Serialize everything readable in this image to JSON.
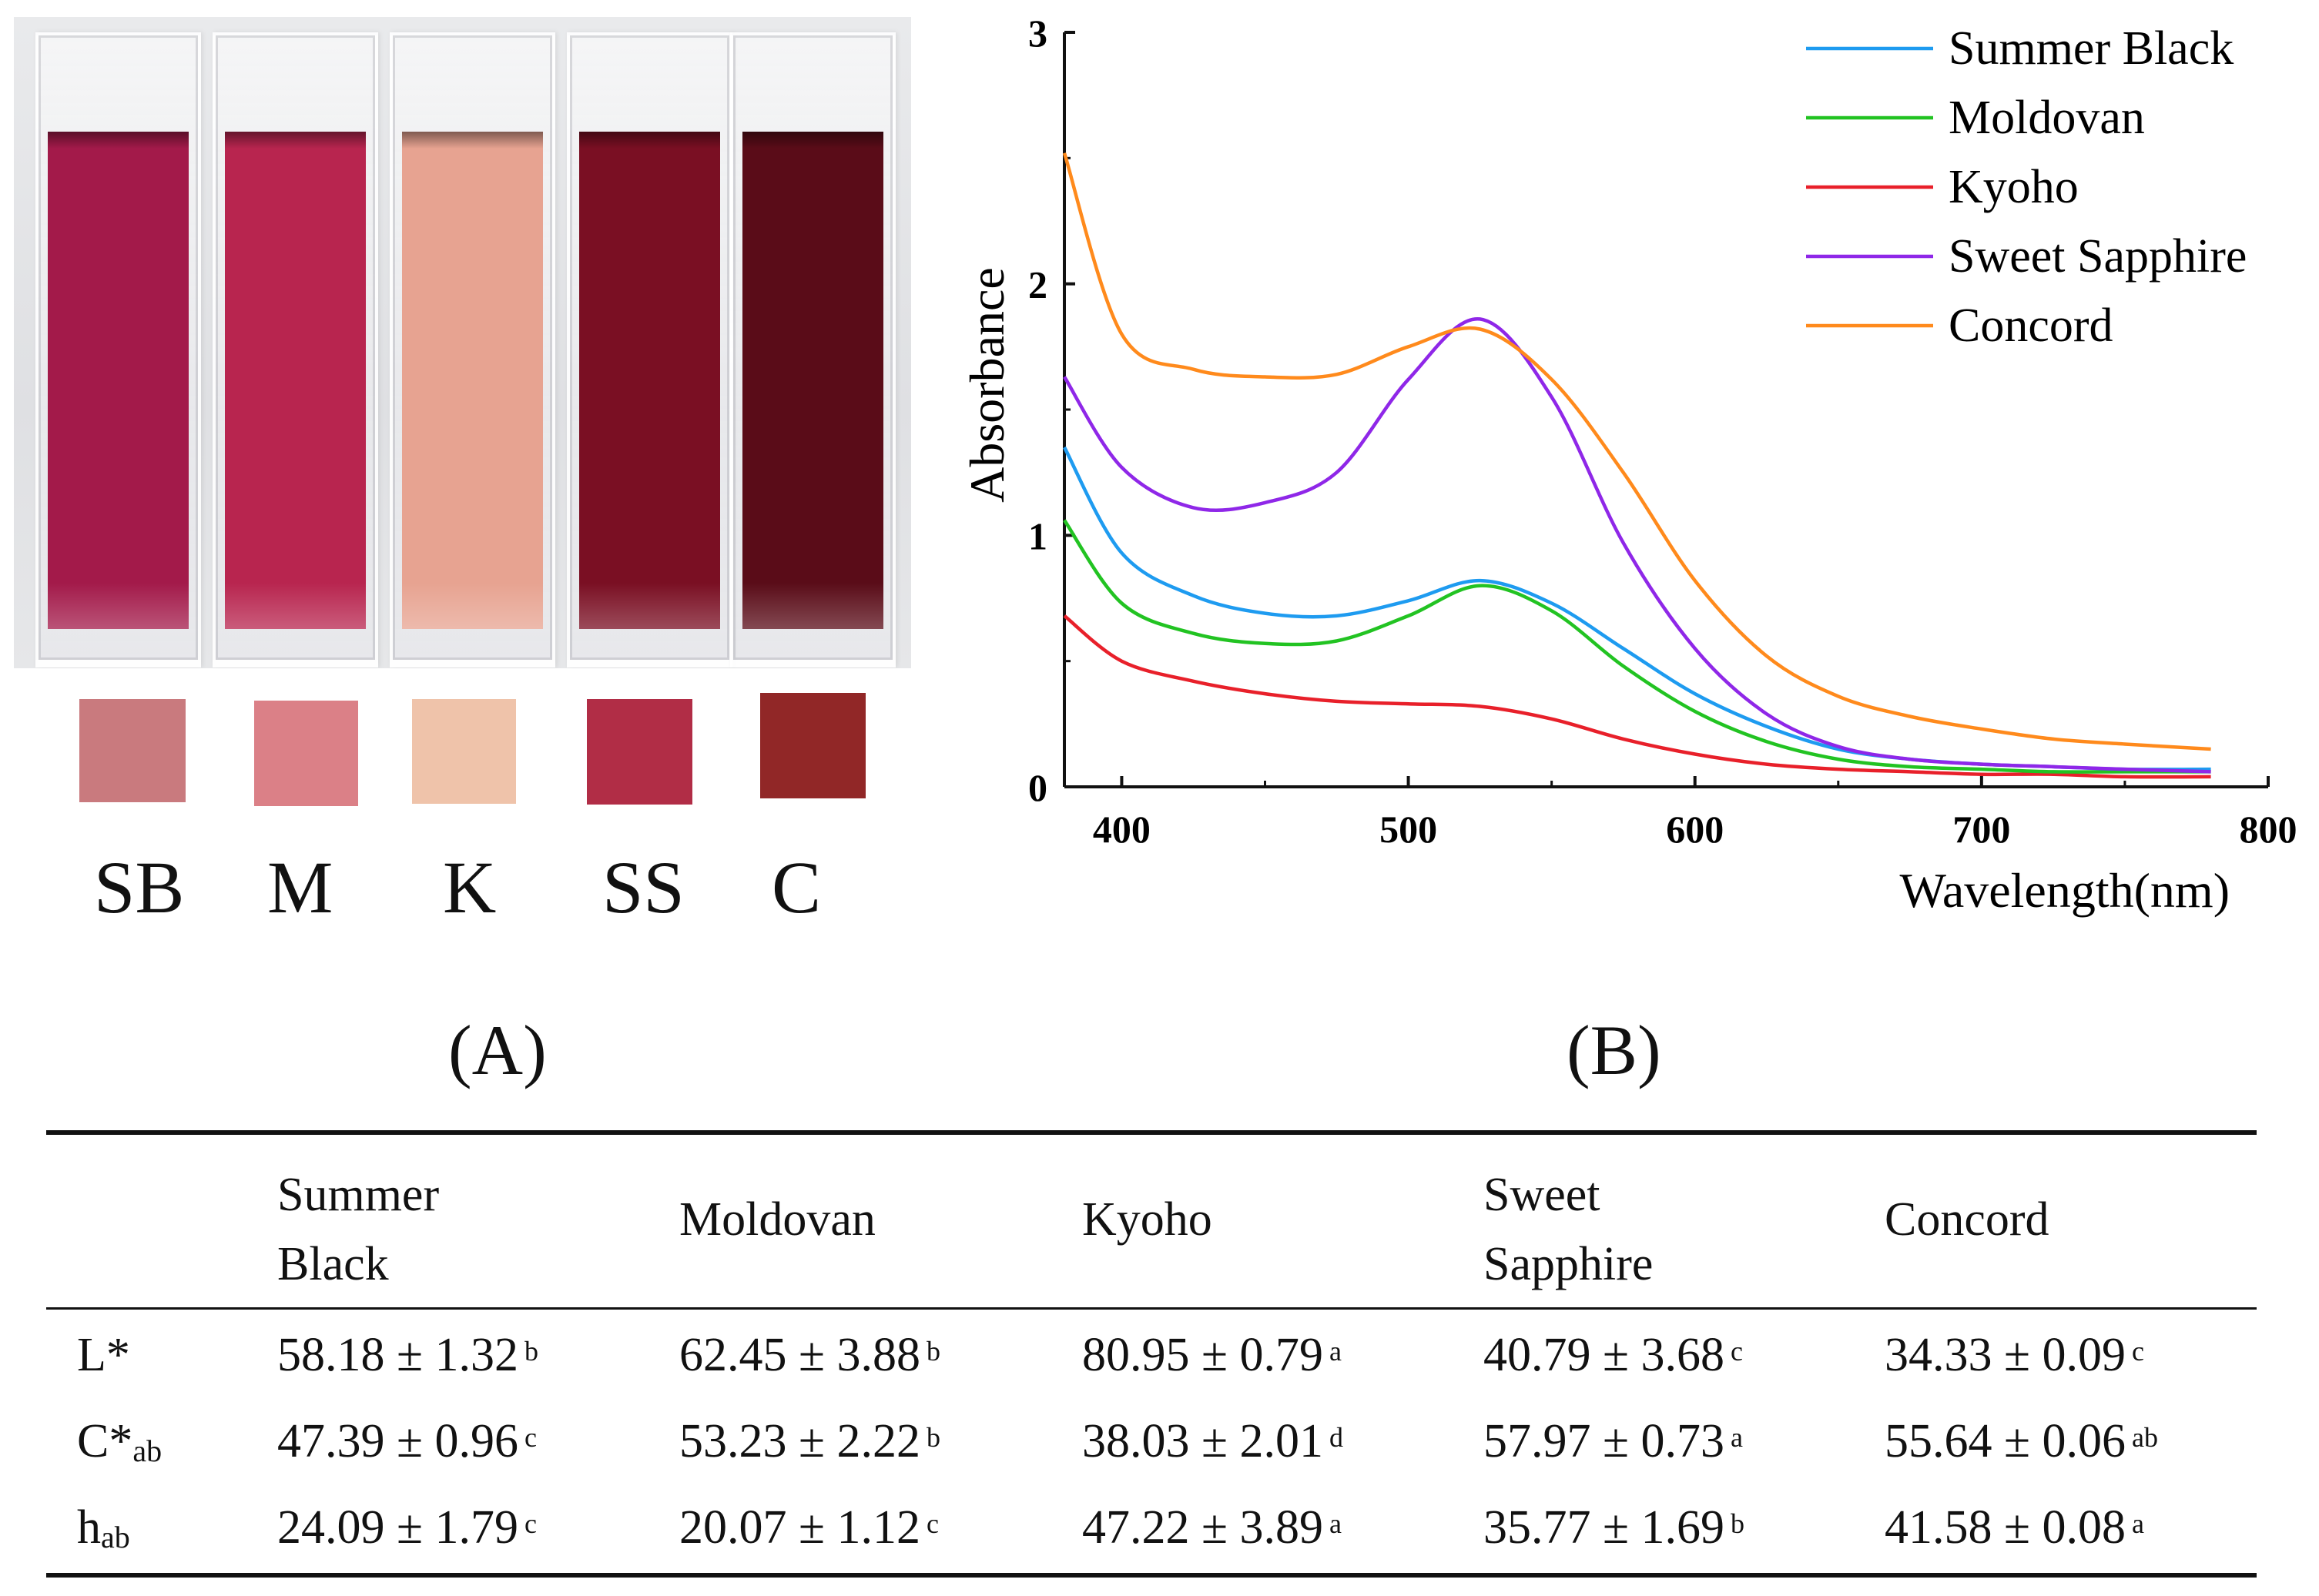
{
  "panel_a": {
    "label": "(A)",
    "samples": [
      {
        "abbr": "SB",
        "liquid_color": "#a31a4a",
        "swatch_color": "#c97a7e"
      },
      {
        "abbr": "M",
        "liquid_color": "#b8254f",
        "swatch_color": "#db8087"
      },
      {
        "abbr": "K",
        "liquid_color": "#e7a391",
        "swatch_color": "#efc3aa"
      },
      {
        "abbr": "SS",
        "liquid_color": "#7a0f23",
        "swatch_color": "#b12d46"
      },
      {
        "abbr": "C",
        "liquid_color": "#5a0c18",
        "swatch_color": "#912727"
      }
    ]
  },
  "panel_b": {
    "label": "(B)"
  },
  "chart_data": {
    "type": "line",
    "xlabel": "Wavelength(nm)",
    "ylabel": "Absorbance",
    "xlim": [
      380,
      800
    ],
    "ylim": [
      0,
      3
    ],
    "xticks": [
      400,
      500,
      600,
      700,
      800
    ],
    "yticks": [
      0,
      1,
      2,
      3
    ],
    "legend_position": "top-right",
    "x": [
      380,
      400,
      425,
      450,
      475,
      500,
      525,
      550,
      575,
      600,
      625,
      650,
      675,
      700,
      725,
      750,
      780
    ],
    "series": [
      {
        "name": "Summer Black",
        "color": "#1e9bf0",
        "values": [
          1.35,
          0.93,
          0.76,
          0.69,
          0.68,
          0.74,
          0.82,
          0.73,
          0.55,
          0.37,
          0.24,
          0.15,
          0.11,
          0.09,
          0.08,
          0.07,
          0.07
        ]
      },
      {
        "name": "Moldovan",
        "color": "#22c322",
        "values": [
          1.06,
          0.73,
          0.61,
          0.57,
          0.58,
          0.68,
          0.8,
          0.7,
          0.48,
          0.3,
          0.18,
          0.11,
          0.08,
          0.07,
          0.06,
          0.06,
          0.06
        ]
      },
      {
        "name": "Kyoho",
        "color": "#e8202a",
        "values": [
          0.68,
          0.5,
          0.42,
          0.37,
          0.34,
          0.33,
          0.32,
          0.27,
          0.19,
          0.13,
          0.09,
          0.07,
          0.06,
          0.05,
          0.05,
          0.04,
          0.04
        ]
      },
      {
        "name": "Sweet Sapphire",
        "color": "#8f27e8",
        "values": [
          1.63,
          1.27,
          1.11,
          1.13,
          1.25,
          1.62,
          1.86,
          1.55,
          0.97,
          0.55,
          0.29,
          0.16,
          0.11,
          0.09,
          0.08,
          0.07,
          0.06
        ]
      },
      {
        "name": "Concord",
        "color": "#ff8a1c",
        "values": [
          2.52,
          1.8,
          1.66,
          1.63,
          1.64,
          1.75,
          1.82,
          1.62,
          1.25,
          0.82,
          0.52,
          0.36,
          0.28,
          0.23,
          0.19,
          0.17,
          0.15
        ]
      }
    ]
  },
  "table": {
    "headers": [
      "",
      "Summer\nBlack",
      "Moldovan",
      "Kyoho",
      "Sweet\nSapphire",
      "Concord"
    ],
    "rows": [
      {
        "label": "L*",
        "label_sub": "",
        "cells": [
          [
            "58.18 ± 1.32",
            "b"
          ],
          [
            "62.45 ± 3.88",
            "b"
          ],
          [
            "80.95 ± 0.79",
            "a"
          ],
          [
            "40.79 ± 3.68",
            "c"
          ],
          [
            "34.33 ± 0.09",
            "c"
          ]
        ]
      },
      {
        "label": "C*",
        "label_sub": "ab",
        "cells": [
          [
            "47.39 ± 0.96",
            "c"
          ],
          [
            "53.23 ± 2.22",
            "b"
          ],
          [
            "38.03 ± 2.01",
            "d"
          ],
          [
            "57.97 ± 0.73",
            "a"
          ],
          [
            "55.64 ± 0.06",
            "ab"
          ]
        ]
      },
      {
        "label": "h",
        "label_sub": "ab",
        "cells": [
          [
            "24.09 ± 1.79",
            "c"
          ],
          [
            "20.07 ± 1.12",
            "c"
          ],
          [
            "47.22 ± 3.89",
            "a"
          ],
          [
            "35.77 ± 1.69",
            "b"
          ],
          [
            "41.58 ± 0.08",
            "a"
          ]
        ]
      }
    ]
  }
}
